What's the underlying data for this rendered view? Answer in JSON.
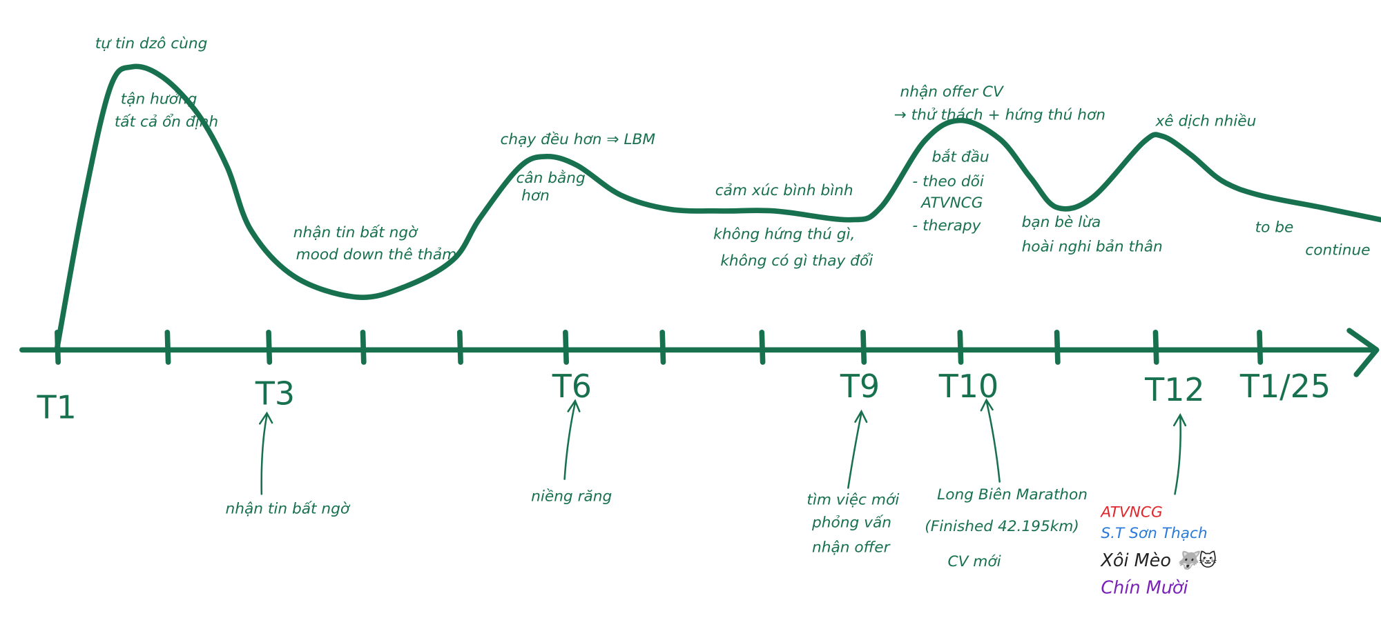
{
  "curve_notes": {
    "peak1_top": "tự tin dzô cùng",
    "peak1_line1": "tận hưởng",
    "peak1_line2": "tất cả ổn định",
    "valley_line1": "nhận tin bất ngờ",
    "valley_line2": "mood down thê thảm",
    "peak2_top": "chạy đều hơn ⇒ LBM",
    "peak2_line1": "cân bằng",
    "peak2_line2": "hơn",
    "flat_top": "cảm xúc bình bình",
    "flat_line1": "không hứng thú gì,",
    "flat_line2": "không có gì thay đổi",
    "peak3_top1": "nhận offer CV",
    "peak3_top2": "→ thử thách + hứng thú hơn",
    "peak3_line1": "bắt đầu",
    "peak3_line2": "- theo dõi",
    "peak3_line3": "ATVNCG",
    "peak3_line4": "- therapy",
    "dip_line1": "bạn bè lừa",
    "dip_line2": "hoài nghi bản thân",
    "peak4_top": "xê dịch nhiều",
    "end_line1": "to be",
    "end_line2": "continue"
  },
  "timeline": {
    "labels": [
      "T1",
      "T3",
      "T6",
      "T9",
      "T10",
      "T12",
      "T1/25"
    ]
  },
  "events": {
    "t3": "nhận tin bất ngờ",
    "t6": "niềng răng",
    "t9_line1": "tìm việc mới",
    "t9_line2": "phỏng vấn",
    "t9_line3": "nhận offer",
    "t10_line1": "Long Biên Marathon",
    "t10_line2": "(Finished 42.195km)",
    "t10_line3": "CV mới",
    "t12_line1": "ATVNCG",
    "t12_line2": "S.T Sơn Thạch",
    "t12_line3": "Xôi Mèo 🐺🐱",
    "t12_line4": "Chín Mười"
  }
}
